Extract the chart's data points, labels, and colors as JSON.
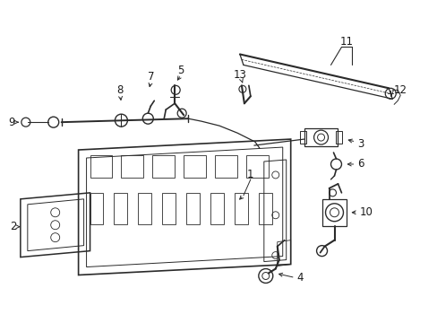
{
  "bg_color": "#ffffff",
  "fig_width": 4.89,
  "fig_height": 3.6,
  "dpi": 100,
  "line_color": "#2a2a2a",
  "text_color": "#1a1a1a",
  "font_size": 8.5
}
